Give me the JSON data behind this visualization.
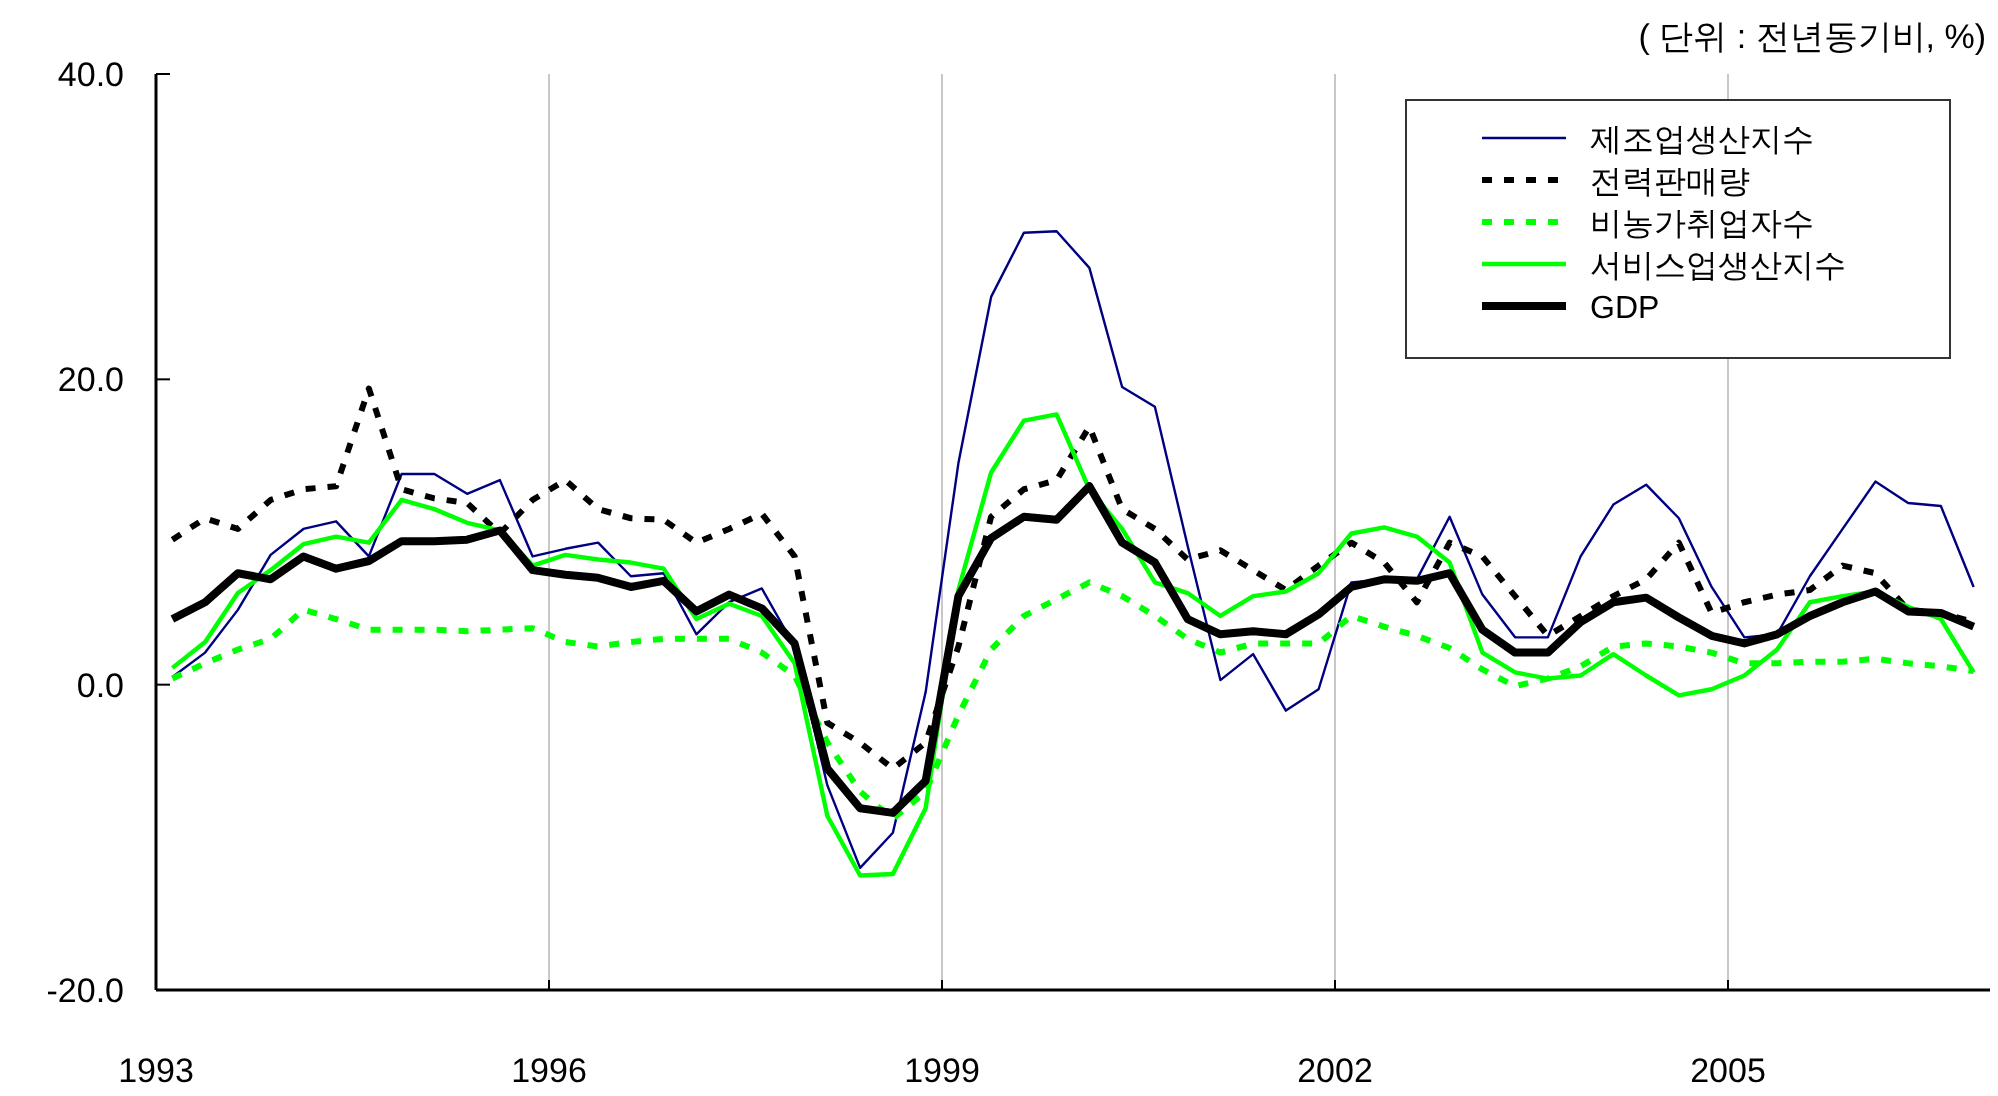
{
  "chart_data": {
    "type": "line",
    "annotations": [
      "( 단위 : 전년동기비, %)"
    ],
    "x": [
      1993.125,
      1993.375,
      1993.625,
      1993.875,
      1994.125,
      1994.375,
      1994.625,
      1994.875,
      1995.125,
      1995.375,
      1995.625,
      1995.875,
      1996.125,
      1996.375,
      1996.625,
      1996.875,
      1997.125,
      1997.375,
      1997.625,
      1997.875,
      1998.125,
      1998.375,
      1998.625,
      1998.875,
      1999.125,
      1999.375,
      1999.625,
      1999.875,
      2000.125,
      2000.375,
      2000.625,
      2000.875,
      2001.125,
      2001.375,
      2001.625,
      2001.875,
      2002.125,
      2002.375,
      2002.625,
      2002.875,
      2003.125,
      2003.375,
      2003.625,
      2003.875,
      2004.125,
      2004.375,
      2004.625,
      2004.875,
      2005.125,
      2005.375,
      2005.625,
      2005.875,
      2006.125,
      2006.375,
      2006.625,
      2006.875
    ],
    "series": [
      {
        "name": "제조업생산지수",
        "color": "#000080",
        "line_style": "solid",
        "values": [
          0.5,
          2.1,
          4.9,
          8.5,
          10.2,
          10.7,
          8.4,
          13.8,
          13.8,
          12.5,
          13.4,
          8.4,
          8.9,
          9.3,
          7.1,
          7.3,
          3.3,
          5.4,
          6.3,
          2.5,
          -6.6,
          -12.0,
          -9.7,
          -0.5,
          14.5,
          25.4,
          29.6,
          29.7,
          27.3,
          19.5,
          18.2,
          9.1,
          0.3,
          2.0,
          -1.7,
          -0.3,
          6.7,
          6.9,
          6.9,
          11.0,
          5.9,
          3.1,
          3.1,
          8.4,
          11.8,
          13.1,
          10.9,
          6.4,
          3.1,
          3.3,
          7.1,
          10.2,
          13.3,
          11.9,
          11.7,
          6.4
        ]
      },
      {
        "name": "전력판매량",
        "color": "#000000",
        "line_style": "dashed",
        "values": [
          9.5,
          10.9,
          10.2,
          12.1,
          12.8,
          13.0,
          19.4,
          12.8,
          12.2,
          11.9,
          9.9,
          12.1,
          13.4,
          11.5,
          10.9,
          10.8,
          9.3,
          10.2,
          11.2,
          8.4,
          -2.5,
          -3.8,
          -5.5,
          -3.8,
          2.5,
          11.0,
          12.8,
          13.4,
          16.9,
          11.5,
          10.2,
          8.2,
          8.8,
          7.5,
          6.2,
          7.8,
          9.3,
          8.0,
          5.4,
          9.3,
          8.4,
          5.8,
          3.2,
          4.5,
          5.8,
          6.9,
          9.3,
          4.7,
          5.4,
          5.9,
          6.2,
          7.8,
          7.3,
          4.9,
          4.7,
          4.1
        ]
      },
      {
        "name": "비농가취업자수",
        "color": "#00ff00",
        "line_style": "dashed",
        "values": [
          0.4,
          1.4,
          2.3,
          3.0,
          4.9,
          4.3,
          3.6,
          3.6,
          3.6,
          3.5,
          3.6,
          3.7,
          2.8,
          2.5,
          2.8,
          3.0,
          3.0,
          3.0,
          2.1,
          0.6,
          -3.8,
          -7.0,
          -8.8,
          -7.0,
          -2.0,
          2.3,
          4.5,
          5.6,
          6.7,
          5.8,
          4.5,
          3.0,
          2.1,
          2.7,
          2.7,
          2.7,
          4.5,
          3.8,
          3.2,
          2.4,
          1.0,
          -0.1,
          0.4,
          1.2,
          2.5,
          2.7,
          2.5,
          2.1,
          1.4,
          1.4,
          1.5,
          1.5,
          1.7,
          1.4,
          1.2,
          0.9
        ]
      },
      {
        "name": "서비스업생산지수",
        "color": "#00ff00",
        "line_style": "solid",
        "values": [
          1.1,
          2.8,
          6.0,
          7.5,
          9.2,
          9.7,
          9.3,
          12.1,
          11.5,
          10.6,
          10.1,
          7.8,
          8.5,
          8.2,
          8.0,
          7.6,
          4.3,
          5.3,
          4.5,
          1.4,
          -8.6,
          -12.5,
          -12.4,
          -8.1,
          6.2,
          13.9,
          17.3,
          17.7,
          12.8,
          10.2,
          6.7,
          6.0,
          4.5,
          5.8,
          6.1,
          7.3,
          9.9,
          10.3,
          9.7,
          8.0,
          2.1,
          0.8,
          0.4,
          0.6,
          2.0,
          0.6,
          -0.7,
          -0.3,
          0.6,
          2.3,
          5.4,
          5.8,
          6.1,
          5.1,
          4.3,
          0.8
        ]
      },
      {
        "name": "GDP",
        "color": "#000000",
        "line_style": "solid",
        "values": [
          4.3,
          5.4,
          7.3,
          6.9,
          8.4,
          7.6,
          8.1,
          9.4,
          9.4,
          9.5,
          10.1,
          7.5,
          7.2,
          7.0,
          6.4,
          6.8,
          4.8,
          5.9,
          5.0,
          2.7,
          -5.5,
          -8.1,
          -8.4,
          -6.3,
          5.8,
          9.6,
          11.0,
          10.8,
          13.0,
          9.3,
          8.0,
          4.3,
          3.3,
          3.5,
          3.3,
          4.6,
          6.4,
          6.9,
          6.8,
          7.3,
          3.6,
          2.1,
          2.1,
          4.1,
          5.4,
          5.7,
          4.4,
          3.2,
          2.7,
          3.3,
          4.5,
          5.4,
          6.1,
          4.8,
          4.7,
          3.8
        ]
      }
    ],
    "xlim": [
      1993,
      2007
    ],
    "xticks": [
      1993,
      1996,
      1999,
      2002,
      2005
    ],
    "ylim": [
      -20,
      40
    ],
    "yticks": [
      {
        "value": -20,
        "label": "-20.0"
      },
      {
        "value": 0,
        "label": "0.0"
      },
      {
        "value": 20,
        "label": "20.0"
      },
      {
        "value": 40,
        "label": "40.0"
      }
    ],
    "grid": "x",
    "legend": "top right",
    "marker": "none"
  }
}
